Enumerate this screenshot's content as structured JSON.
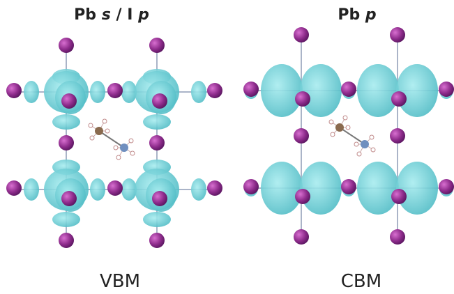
{
  "panels": [
    {
      "title": [
        "Pb",
        "s",
        "/ I",
        "p"
      ],
      "label": "VBM"
    },
    {
      "title": [
        "Pb",
        "p"
      ],
      "label": "CBM"
    }
  ]
}
